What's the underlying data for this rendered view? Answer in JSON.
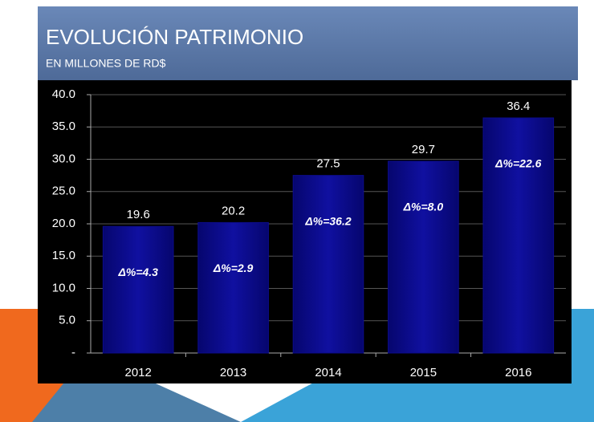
{
  "chart_data": {
    "type": "bar",
    "title": "EVOLUCIÓN PATRIMONIO",
    "subtitle": "EN MILLONES DE RD$",
    "categories": [
      "2012",
      "2013",
      "2014",
      "2015",
      "2016"
    ],
    "values": [
      19.6,
      20.2,
      27.5,
      29.7,
      36.4
    ],
    "annotations": [
      "Δ%=4.3",
      "Δ%=2.9",
      "Δ%=36.2",
      "Δ%=8.0",
      "Δ%=22.6"
    ],
    "color": "#0c0c8c",
    "ylim": [
      0,
      40
    ],
    "yticks": [
      {
        "value": 0,
        "label": "-"
      },
      {
        "value": 5,
        "label": "5.0"
      },
      {
        "value": 10,
        "label": "10.0"
      },
      {
        "value": 15,
        "label": "15.0"
      },
      {
        "value": 20,
        "label": "20.0"
      },
      {
        "value": 25,
        "label": "25.0"
      },
      {
        "value": 30,
        "label": "30.0"
      },
      {
        "value": 35,
        "label": "35.0"
      },
      {
        "value": 40,
        "label": "40.0"
      }
    ],
    "grid": true
  }
}
